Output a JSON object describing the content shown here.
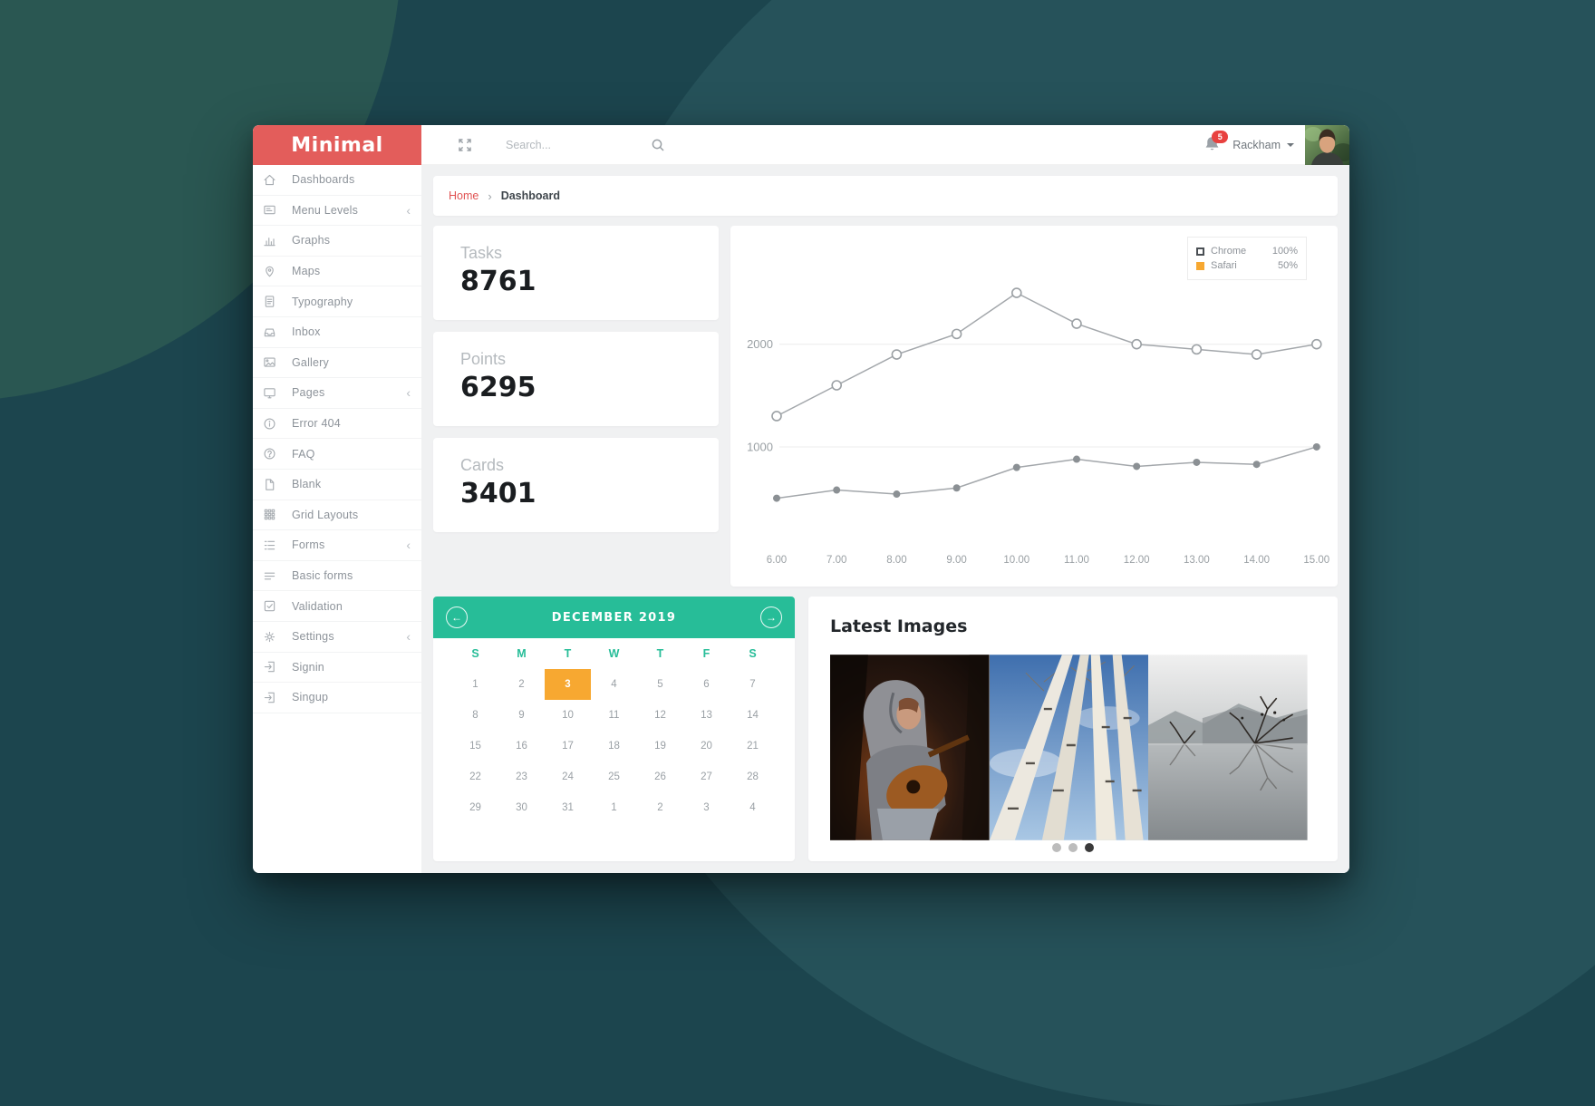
{
  "theme": {
    "brand_red": "#e35d5b",
    "green": "#27bd98",
    "orange": "#f7a831",
    "bg_teal": "#1c454e",
    "bg_circle": "#2a5752",
    "line_gray": "#a3a7ab"
  },
  "app": {
    "brand": "Minimal"
  },
  "sidebar": {
    "items": [
      {
        "label": "Dashboards",
        "icon": "dashboard-icon",
        "has_submenu": false
      },
      {
        "label": "Menu Levels",
        "icon": "menu-levels-icon",
        "has_submenu": true
      },
      {
        "label": "Graphs",
        "icon": "graphs-icon",
        "has_submenu": false
      },
      {
        "label": "Maps",
        "icon": "maps-icon",
        "has_submenu": false
      },
      {
        "label": "Typography",
        "icon": "typography-icon",
        "has_submenu": false
      },
      {
        "label": "Inbox",
        "icon": "inbox-icon",
        "has_submenu": false
      },
      {
        "label": "Gallery",
        "icon": "gallery-icon",
        "has_submenu": false
      },
      {
        "label": "Pages",
        "icon": "pages-icon",
        "has_submenu": true
      },
      {
        "label": "Error 404",
        "icon": "error-icon",
        "has_submenu": false
      },
      {
        "label": "FAQ",
        "icon": "faq-icon",
        "has_submenu": false
      },
      {
        "label": "Blank",
        "icon": "blank-icon",
        "has_submenu": false
      },
      {
        "label": "Grid Layouts",
        "icon": "grid-icon",
        "has_submenu": false
      },
      {
        "label": "Forms",
        "icon": "forms-icon",
        "has_submenu": true
      },
      {
        "label": "Basic forms",
        "icon": "basic-forms-icon",
        "has_submenu": false
      },
      {
        "label": "Validation",
        "icon": "validation-icon",
        "has_submenu": false
      },
      {
        "label": "Settings",
        "icon": "settings-icon",
        "has_submenu": true
      },
      {
        "label": "Signin",
        "icon": "signin-icon",
        "has_submenu": false
      },
      {
        "label": "Singup",
        "icon": "signup-icon",
        "has_submenu": false
      }
    ]
  },
  "topbar": {
    "search_placeholder": "Search...",
    "notification_count": "5",
    "user_name": "Rackham"
  },
  "breadcrumb": {
    "home": "Home",
    "separator": "›",
    "current": "Dashboard"
  },
  "stats": [
    {
      "label": "Tasks",
      "value": "8761"
    },
    {
      "label": "Points",
      "value": "6295"
    },
    {
      "label": "Cards",
      "value": "3401"
    }
  ],
  "chart_data": {
    "type": "line",
    "x": [
      6,
      7,
      8,
      9,
      10,
      11,
      12,
      13,
      14,
      15
    ],
    "x_tick_labels": [
      "6.00",
      "7.00",
      "8.00",
      "9.00",
      "10.00",
      "11.00",
      "12.00",
      "13.00",
      "14.00",
      "15.00"
    ],
    "yticks": [
      1000,
      2000
    ],
    "ytick_labels": [
      "1000",
      "2000"
    ],
    "ylim": [
      0,
      2650
    ],
    "grid": true,
    "legend_position": "top-right",
    "series": [
      {
        "name": "Chrome",
        "legend_value": "100%",
        "marker": "open-circle",
        "values": [
          1300,
          1600,
          1900,
          2100,
          2500,
          2200,
          2000,
          1950,
          1900,
          2000
        ]
      },
      {
        "name": "Safari",
        "legend_value": "50%",
        "marker": "filled-circle",
        "swatch_color": "#f7a831",
        "values": [
          500,
          580,
          540,
          600,
          800,
          880,
          810,
          850,
          830,
          1000
        ]
      }
    ]
  },
  "calendar": {
    "title": "DECEMBER 2019",
    "nav_prev": "←",
    "nav_next": "→",
    "day_headers": [
      "S",
      "M",
      "T",
      "W",
      "T",
      "F",
      "S"
    ],
    "weeks": [
      [
        "1",
        "2",
        "3",
        "4",
        "5",
        "6",
        "7"
      ],
      [
        "8",
        "9",
        "10",
        "11",
        "12",
        "13",
        "14"
      ],
      [
        "15",
        "16",
        "17",
        "18",
        "19",
        "20",
        "21"
      ],
      [
        "22",
        "23",
        "24",
        "25",
        "26",
        "27",
        "28"
      ],
      [
        "29",
        "30",
        "31",
        "1",
        "2",
        "3",
        "4"
      ]
    ],
    "selected": {
      "week": 0,
      "day": "3"
    }
  },
  "latest_images": {
    "title": "Latest Images",
    "images": [
      {
        "name": "guitar-player-photo"
      },
      {
        "name": "birch-trees-photo"
      },
      {
        "name": "lake-branches-photo"
      }
    ],
    "dots_total": 3,
    "active_dot": 2
  }
}
